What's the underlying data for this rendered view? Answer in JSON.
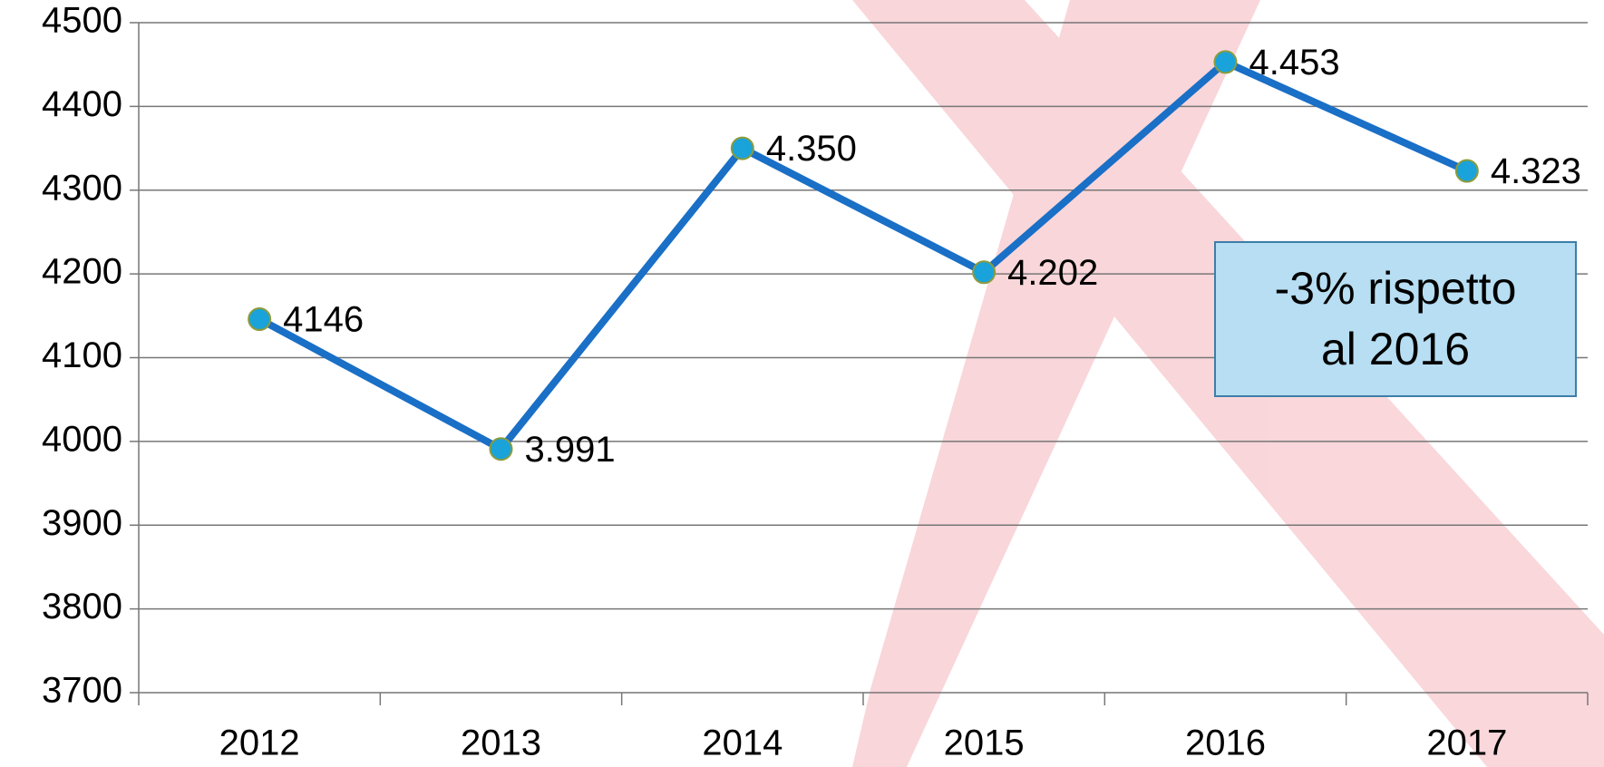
{
  "chart_data": {
    "type": "line",
    "categories": [
      "2012",
      "2013",
      "2014",
      "2015",
      "2016",
      "2017"
    ],
    "values": [
      4146,
      3991,
      4350,
      4202,
      4453,
      4323
    ],
    "value_labels": [
      "4146",
      "3.991",
      "4.350",
      "4.202",
      "4.453",
      "4.323"
    ],
    "color": "#1a6fc6",
    "marker_color": "#19a3da",
    "ylim": [
      3700,
      4500
    ],
    "yticks": [
      3700,
      3800,
      3900,
      4000,
      4100,
      4200,
      4300,
      4400,
      4500
    ],
    "grid": true,
    "annotation": "-3% rispetto al 2016"
  }
}
